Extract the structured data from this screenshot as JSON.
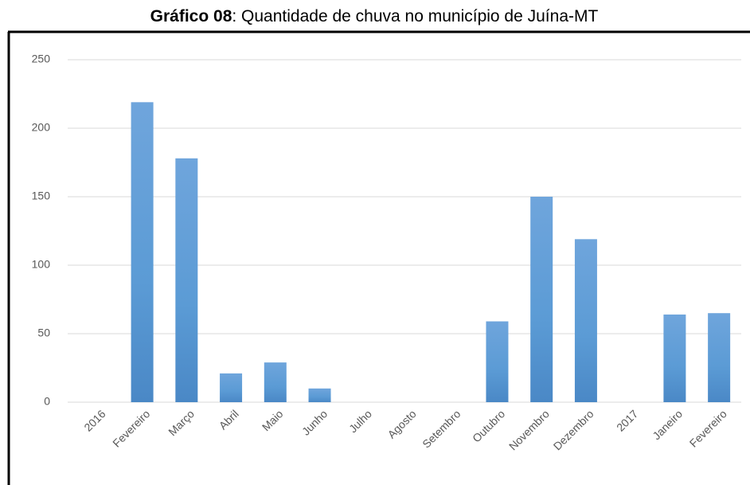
{
  "chart_data": {
    "type": "bar",
    "title": [
      "Gráfico 08",
      ": Quantidade de chuva no município de Juína-MT"
    ],
    "categories": [
      "2016",
      "Fevereiro",
      "Março",
      "Abril",
      "Maio",
      "Junho",
      "Julho",
      "Agosto",
      "Setembro",
      "Outubro",
      "Novembro",
      "Dezembro",
      "2017",
      "Janeiro",
      "Fevereiro"
    ],
    "values": [
      null,
      219,
      178,
      21,
      29,
      10,
      0,
      0,
      0,
      59,
      150,
      119,
      null,
      64,
      65
    ],
    "color": "#5b9bd5",
    "ylim": [
      0,
      250
    ],
    "yticks": [
      0,
      50,
      100,
      150,
      200,
      250
    ],
    "grid": true
  }
}
